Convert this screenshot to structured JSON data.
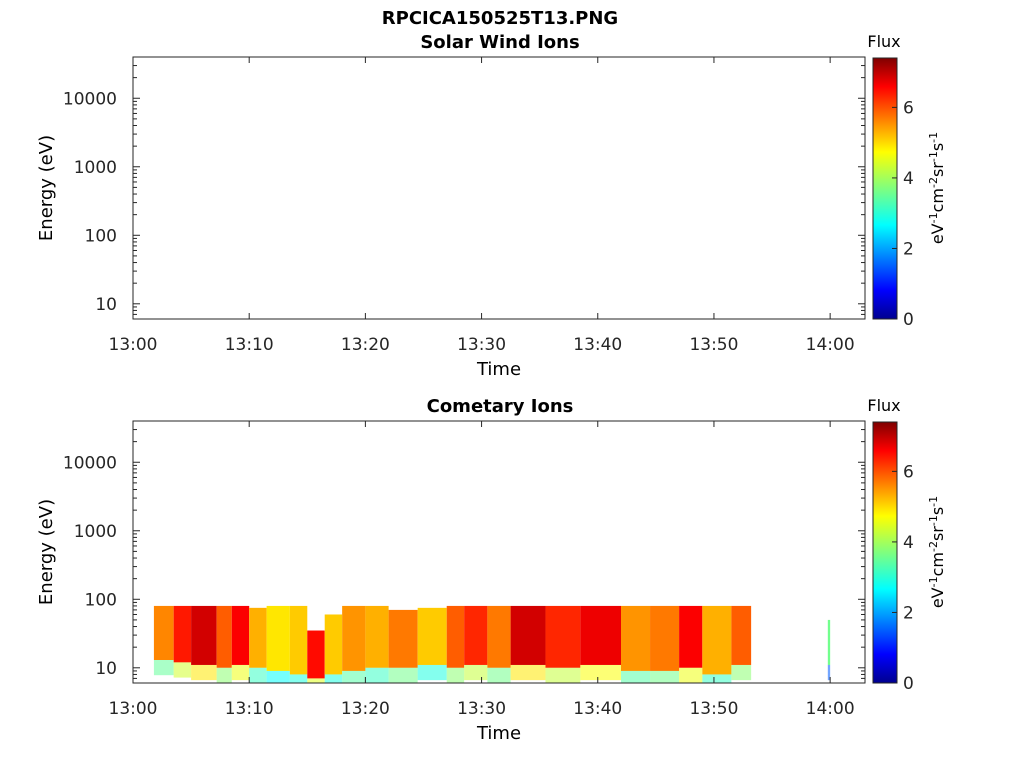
{
  "figure": {
    "title": "RPCICA150525T13.PNG"
  },
  "chart_data": [
    {
      "type": "heatmap",
      "title": "Solar Wind Ions",
      "xlabel": "Time",
      "ylabel": "Energy (eV)",
      "x_ticks": [
        "13:00",
        "13:10",
        "13:20",
        "13:30",
        "13:40",
        "13:50",
        "14:00"
      ],
      "xlim": [
        "13:00",
        "14:03"
      ],
      "y_scale": "log",
      "y_ticks": [
        "10",
        "100",
        "1000",
        "10000"
      ],
      "ylim": [
        6,
        40000
      ],
      "colorbar": {
        "label": "Flux",
        "unit": "eV-1cm-2sr-1s-1",
        "ticks": [
          "0",
          "2",
          "4",
          "6"
        ],
        "range": [
          0,
          7.4
        ]
      },
      "segments": []
    },
    {
      "type": "heatmap",
      "title": "Cometary Ions",
      "xlabel": "Time",
      "ylabel": "Energy (eV)",
      "x_ticks": [
        "13:00",
        "13:10",
        "13:20",
        "13:30",
        "13:40",
        "13:50",
        "14:00"
      ],
      "xlim": [
        "13:00",
        "14:03"
      ],
      "y_scale": "log",
      "y_ticks": [
        "10",
        "100",
        "1000",
        "10000"
      ],
      "ylim": [
        6,
        40000
      ],
      "colorbar": {
        "label": "Flux",
        "unit": "eV-1cm-2sr-1s-1",
        "ticks": [
          "0",
          "2",
          "4",
          "6"
        ],
        "range": [
          0,
          7.4
        ]
      },
      "segments": [
        {
          "t0": 1.8,
          "t1": 3.5,
          "emin": 13,
          "emax": 80,
          "flux": 5.5
        },
        {
          "t0": 3.5,
          "t1": 5.0,
          "emin": 12,
          "emax": 80,
          "flux": 6.3
        },
        {
          "t0": 5.0,
          "t1": 7.2,
          "emin": 11,
          "emax": 80,
          "flux": 6.8
        },
        {
          "t0": 7.2,
          "t1": 8.5,
          "emin": 10,
          "emax": 80,
          "flux": 5.8
        },
        {
          "t0": 8.5,
          "t1": 10.0,
          "emin": 11,
          "emax": 80,
          "flux": 6.5
        },
        {
          "t0": 10.0,
          "t1": 11.5,
          "emin": 10,
          "emax": 75,
          "flux": 5.2
        },
        {
          "t0": 11.5,
          "t1": 13.5,
          "emin": 9,
          "emax": 80,
          "flux": 4.8
        },
        {
          "t0": 13.5,
          "t1": 15.0,
          "emin": 8,
          "emax": 80,
          "flux": 5.0
        },
        {
          "t0": 15.0,
          "t1": 16.5,
          "emin": 7,
          "emax": 35,
          "flux": 6.4
        },
        {
          "t0": 16.5,
          "t1": 18.0,
          "emin": 8,
          "emax": 60,
          "flux": 5.0
        },
        {
          "t0": 18.0,
          "t1": 20.0,
          "emin": 9,
          "emax": 80,
          "flux": 5.4
        },
        {
          "t0": 20.0,
          "t1": 22.0,
          "emin": 10,
          "emax": 80,
          "flux": 5.2
        },
        {
          "t0": 22.0,
          "t1": 24.5,
          "emin": 10,
          "emax": 70,
          "flux": 5.6
        },
        {
          "t0": 24.5,
          "t1": 27.0,
          "emin": 11,
          "emax": 75,
          "flux": 5.0
        },
        {
          "t0": 27.0,
          "t1": 28.5,
          "emin": 10,
          "emax": 80,
          "flux": 5.8
        },
        {
          "t0": 28.5,
          "t1": 30.5,
          "emin": 11,
          "emax": 80,
          "flux": 6.2
        },
        {
          "t0": 30.5,
          "t1": 32.5,
          "emin": 10,
          "emax": 80,
          "flux": 5.6
        },
        {
          "t0": 32.5,
          "t1": 35.5,
          "emin": 11,
          "emax": 80,
          "flux": 6.8
        },
        {
          "t0": 35.5,
          "t1": 38.5,
          "emin": 10,
          "emax": 80,
          "flux": 6.2
        },
        {
          "t0": 38.5,
          "t1": 42.0,
          "emin": 11,
          "emax": 80,
          "flux": 6.6
        },
        {
          "t0": 42.0,
          "t1": 44.5,
          "emin": 9,
          "emax": 80,
          "flux": 5.4
        },
        {
          "t0": 44.5,
          "t1": 47.0,
          "emin": 9,
          "emax": 80,
          "flux": 5.6
        },
        {
          "t0": 47.0,
          "t1": 49.0,
          "emin": 10,
          "emax": 80,
          "flux": 6.5
        },
        {
          "t0": 49.0,
          "t1": 51.5,
          "emin": 8,
          "emax": 80,
          "flux": 5.2
        },
        {
          "t0": 51.5,
          "t1": 53.2,
          "emin": 11,
          "emax": 80,
          "flux": 5.8
        },
        {
          "t0": 59.8,
          "t1": 60.0,
          "emin": 11,
          "emax": 50,
          "flux": 3.6
        }
      ]
    }
  ]
}
